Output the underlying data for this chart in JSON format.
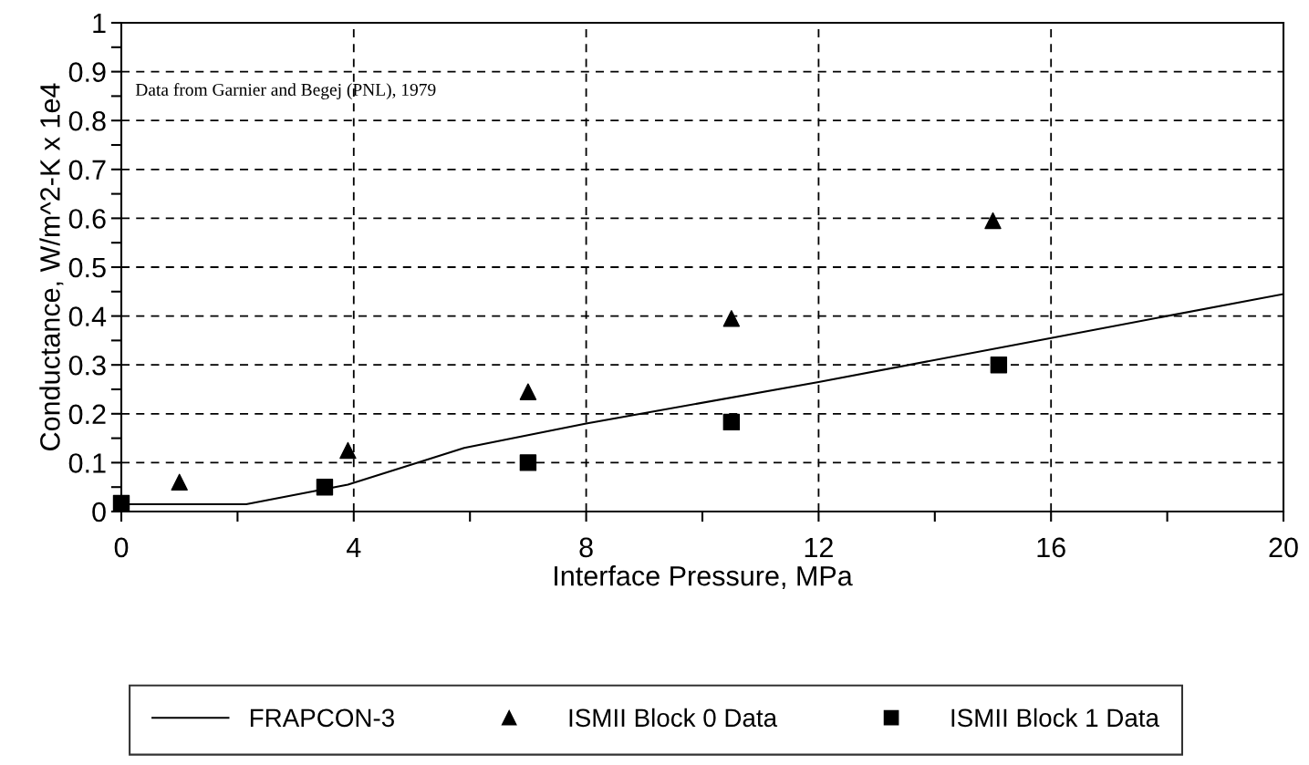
{
  "chart_data": {
    "type": "scatter",
    "xlabel": "Interface Pressure, MPa",
    "ylabel": "Conductance, W/m^2-K x 1e4",
    "annotations": [
      "Data from Garnier and Begej (PNL), 1979"
    ],
    "xlim": [
      0,
      20
    ],
    "ylim": [
      0,
      1
    ],
    "xticks": [
      0,
      {
        "value": 2,
        "label": null
      },
      4,
      {
        "value": 6,
        "label": null
      },
      8,
      {
        "value": 10,
        "label": null
      },
      12,
      {
        "value": 14,
        "label": null
      },
      16,
      {
        "value": 18,
        "label": null
      },
      20
    ],
    "yticks": [
      0,
      {
        "value": 0.05,
        "label": null
      },
      0.1,
      {
        "value": 0.15,
        "label": null
      },
      0.2,
      {
        "value": 0.25,
        "label": null
      },
      0.3,
      {
        "value": 0.35,
        "label": null
      },
      0.4,
      {
        "value": 0.45,
        "label": null
      },
      0.5,
      {
        "value": 0.55,
        "label": null
      },
      0.6,
      {
        "value": 0.65,
        "label": null
      },
      0.7,
      {
        "value": 0.75,
        "label": null
      },
      0.8,
      {
        "value": 0.85,
        "label": null
      },
      0.9,
      {
        "value": 0.95,
        "label": null
      },
      1
    ],
    "grid": true,
    "legend": "bottom",
    "series": [
      {
        "name": "FRAPCON-3",
        "type": "line",
        "color": "#000000",
        "marker": "none",
        "line_style": "solid",
        "x": [
          0,
          2.15,
          3.9,
          5.9,
          8,
          12,
          16,
          20
        ],
        "values": [
          0.015,
          0.015,
          0.055,
          0.13,
          0.18,
          0.265,
          0.355,
          0.445
        ]
      },
      {
        "name": "ISMII Block 0 Data",
        "color": "#000000",
        "marker": "triangle",
        "x": [
          1.0,
          3.9,
          7.0,
          10.5,
          15.0
        ],
        "values": [
          0.06,
          0.125,
          0.245,
          0.395,
          0.595
        ]
      },
      {
        "name": "ISMII Block 1 Data",
        "color": "#000000",
        "marker": "square",
        "x": [
          0,
          3.5,
          7.0,
          10.5,
          15.1
        ],
        "values": [
          0.017,
          0.05,
          0.1,
          0.183,
          0.3
        ]
      }
    ]
  }
}
